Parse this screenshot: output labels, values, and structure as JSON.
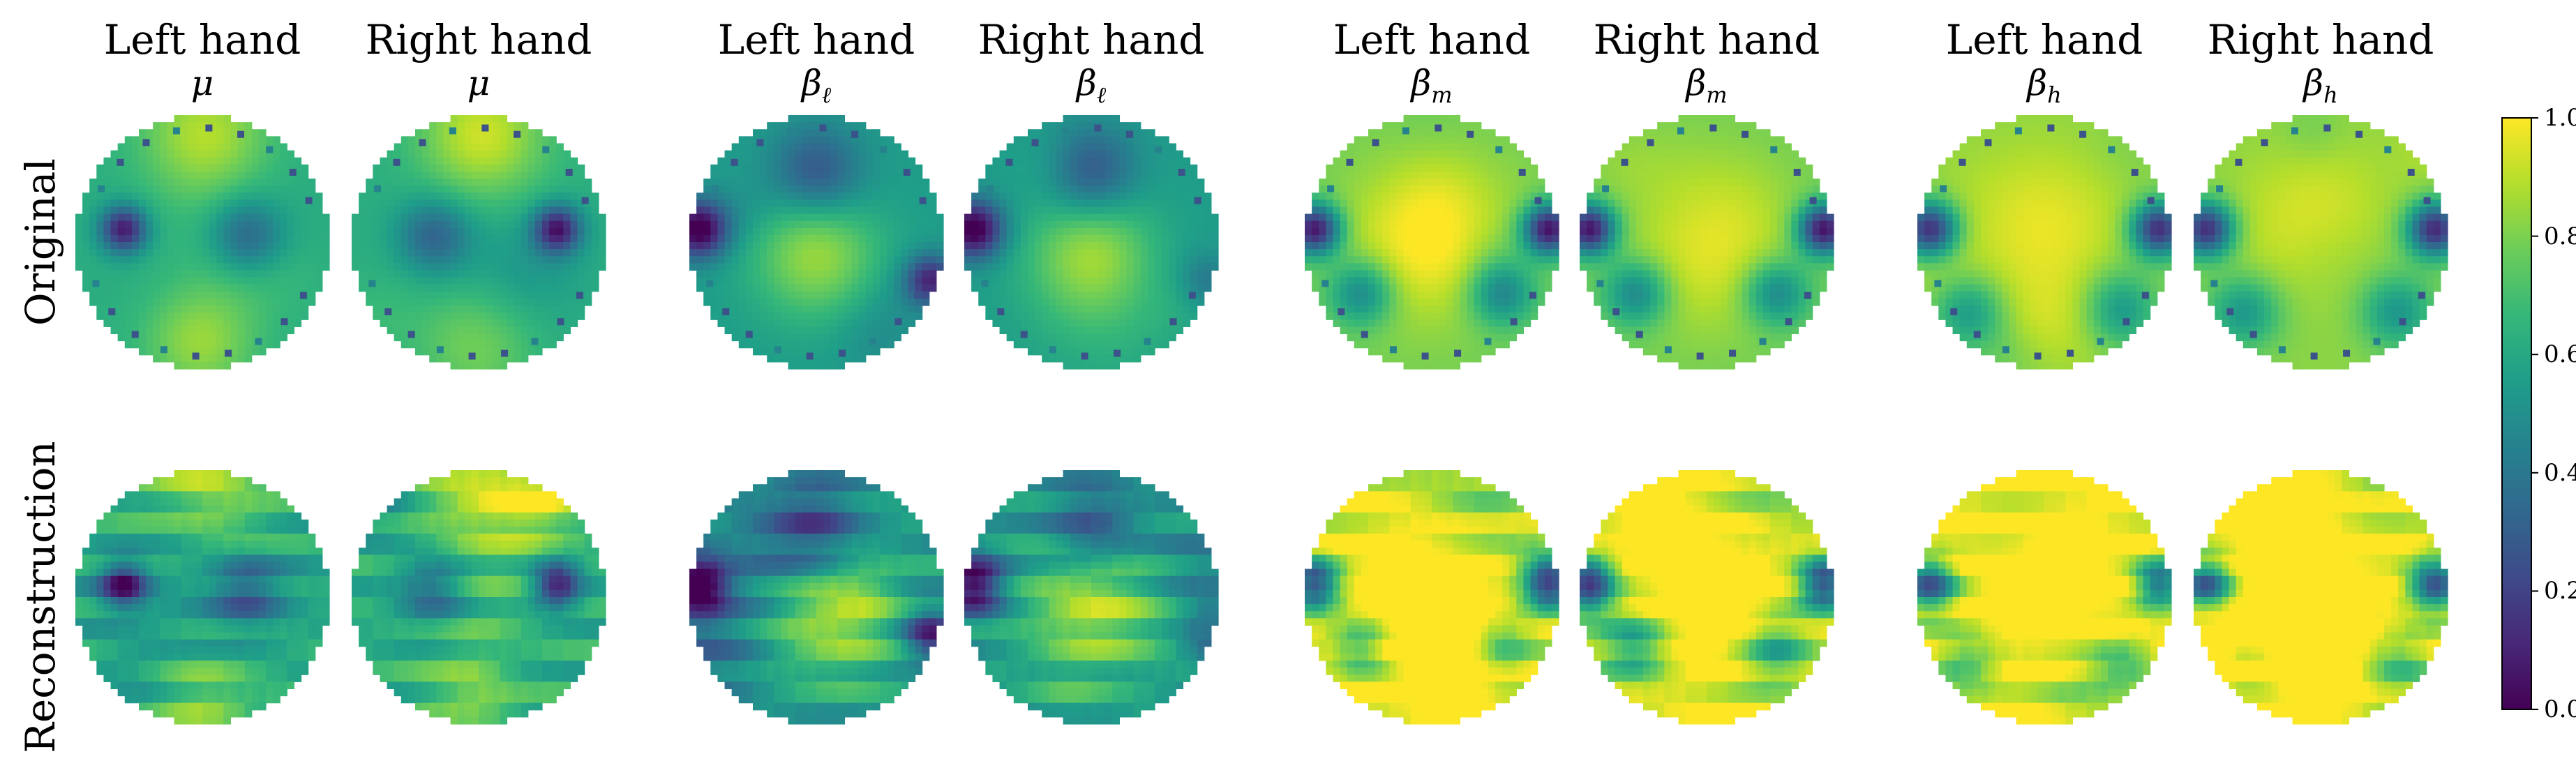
{
  "chart_data": {
    "type": "heatmap",
    "colormap": "viridis",
    "value_range": [
      0.0,
      1.0
    ],
    "row_labels": [
      "Original",
      "Reconstruction"
    ],
    "columns": [
      {
        "hand": "Left hand",
        "band": "μ"
      },
      {
        "hand": "Right hand",
        "band": "μ"
      },
      {
        "hand": "Left hand",
        "band": "βℓ"
      },
      {
        "hand": "Right hand",
        "band": "βℓ"
      },
      {
        "hand": "Left hand",
        "band": "βm"
      },
      {
        "hand": "Right hand",
        "band": "βm"
      },
      {
        "hand": "Left hand",
        "band": "βh"
      },
      {
        "hand": "Right hand",
        "band": "βh"
      }
    ],
    "colorbar": {
      "ticks": [
        "0.0",
        "0.2",
        "0.4",
        "0.6",
        "0.8",
        "1.0"
      ]
    }
  }
}
